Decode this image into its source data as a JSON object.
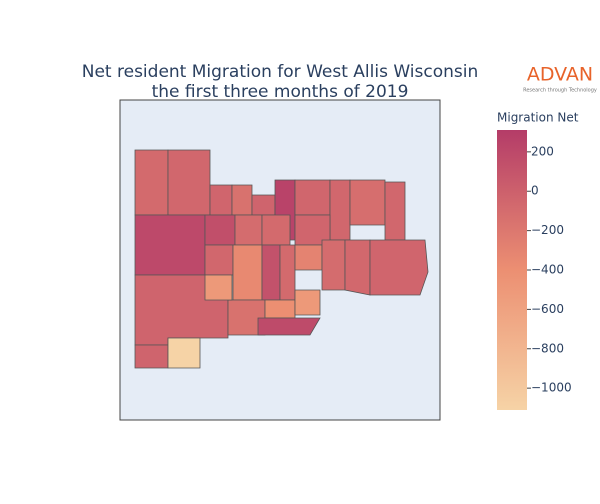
{
  "chart_data": {
    "type": "choropleth",
    "title": "Net resident Migration for West Allis Wisconsin",
    "subtitle": "the first three months of 2019",
    "colorbar_title": "Migration Net",
    "logo": "ADVAN",
    "logo_tagline": "Research through Technology",
    "values": [
      -80,
      -60,
      -40,
      -150,
      -30,
      250,
      -50,
      -60,
      -120,
      -60,
      200,
      150,
      -100,
      -80,
      -40,
      -60,
      -350,
      120,
      -80,
      -300,
      -100,
      -70,
      -40,
      -30,
      -150,
      -400,
      -500,
      180,
      -500,
      -30,
      -1111
    ],
    "zlim": [
      -1111,
      311
    ],
    "zticks": [
      200,
      0,
      {
        "value": -200,
        "label": "−200"
      },
      {
        "value": -400,
        "label": "−400"
      },
      {
        "value": -600,
        "label": "−600"
      },
      {
        "value": -800,
        "label": "−800"
      },
      {
        "value": -1000,
        "label": "−1000"
      }
    ],
    "colorscale": [
      [
        0,
        "#f6d3a6"
      ],
      [
        0.5,
        "#ec8f72"
      ],
      [
        1,
        "#b43c68"
      ]
    ]
  }
}
